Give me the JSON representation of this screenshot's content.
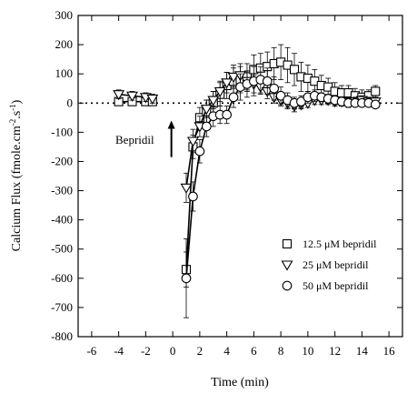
{
  "chart_data": {
    "type": "line",
    "title": "",
    "xlabel": "Time (min)",
    "ylabel": "Calcium Flux (fmole.cm",
    "ylabel_sup1": "-2",
    "ylabel_mid": ".s",
    "ylabel_sup2": "-1",
    "ylabel_end": ")",
    "xlim": [
      -7,
      17
    ],
    "ylim": [
      -800,
      300
    ],
    "xticks": [
      -6,
      -4,
      -2,
      0,
      2,
      4,
      6,
      8,
      10,
      12,
      14,
      16
    ],
    "yticks": [
      300,
      200,
      100,
      0,
      -100,
      -200,
      -300,
      -400,
      -500,
      -600,
      -700,
      -800
    ],
    "baseline": {
      "y": 0,
      "style": "dotted"
    },
    "annotation": {
      "text": "Bepridil",
      "x": -0.1,
      "arrow_from_y": -185,
      "arrow_to_y": -60
    },
    "legend_position": "bottom-right",
    "series": [
      {
        "name": "12.5 μM bepridil",
        "marker": "square",
        "x": [
          -4,
          -3,
          -2,
          -1.5,
          1,
          1.5,
          2,
          2.5,
          3,
          3.5,
          4,
          4.5,
          5,
          5.5,
          6,
          6.5,
          7,
          7.5,
          8,
          8.5,
          9,
          9.5,
          10,
          10.5,
          11,
          11.5,
          12,
          12.5,
          13,
          13.5,
          14,
          14.5,
          15
        ],
        "y": [
          5,
          5,
          5,
          5,
          -570,
          -150,
          -50,
          -30,
          0,
          30,
          60,
          75,
          80,
          90,
          115,
          120,
          125,
          135,
          140,
          130,
          115,
          90,
          85,
          75,
          60,
          55,
          40,
          35,
          35,
          25,
          20,
          25,
          40
        ],
        "err": [
          10,
          10,
          10,
          10,
          60,
          40,
          35,
          40,
          40,
          40,
          45,
          45,
          45,
          45,
          50,
          50,
          50,
          55,
          60,
          60,
          55,
          50,
          45,
          40,
          35,
          30,
          30,
          25,
          25,
          25,
          25,
          20,
          20
        ]
      },
      {
        "name": "25 μM bepridil",
        "marker": "triangle-down",
        "x": [
          -4,
          -3,
          -2,
          -1.5,
          1,
          1.5,
          2,
          2.5,
          3,
          3.5,
          4,
          4.5,
          5,
          5.5,
          6,
          6.5,
          7,
          7.5,
          8,
          8.5,
          9,
          9.5,
          10,
          10.5,
          11,
          11.5,
          12,
          12.5,
          13,
          13.5,
          14,
          14.5,
          15
        ],
        "y": [
          30,
          25,
          20,
          15,
          -290,
          -130,
          -80,
          -20,
          10,
          40,
          70,
          90,
          95,
          75,
          65,
          55,
          40,
          20,
          10,
          0,
          -10,
          -5,
          0,
          10,
          10,
          10,
          5,
          5,
          5,
          5,
          10,
          5,
          5
        ],
        "err": [
          15,
          15,
          15,
          15,
          50,
          40,
          35,
          30,
          30,
          35,
          35,
          40,
          40,
          35,
          30,
          25,
          25,
          20,
          20,
          20,
          20,
          15,
          15,
          15,
          15,
          15,
          15,
          15,
          15,
          15,
          15,
          15,
          15
        ]
      },
      {
        "name": "50 μM bepridil",
        "marker": "circle",
        "x": [
          1,
          1.5,
          2,
          2.5,
          3,
          3.5,
          4,
          4.5,
          5,
          5.5,
          6,
          6.5,
          7,
          7.5,
          8,
          8.5,
          9,
          9.5,
          10,
          10.5,
          11,
          11.5,
          12,
          12.5,
          13,
          13.5,
          14,
          14.5,
          15
        ],
        "y": [
          -600,
          -320,
          -165,
          -80,
          -45,
          -40,
          -40,
          20,
          55,
          65,
          75,
          80,
          75,
          50,
          25,
          10,
          0,
          5,
          20,
          25,
          20,
          15,
          10,
          5,
          0,
          0,
          0,
          0,
          -5
        ],
        "err": [
          135,
          50,
          40,
          35,
          35,
          30,
          30,
          35,
          45,
          45,
          50,
          45,
          45,
          40,
          30,
          25,
          20,
          20,
          20,
          20,
          15,
          15,
          15,
          15,
          15,
          10,
          10,
          10,
          10
        ]
      }
    ]
  }
}
